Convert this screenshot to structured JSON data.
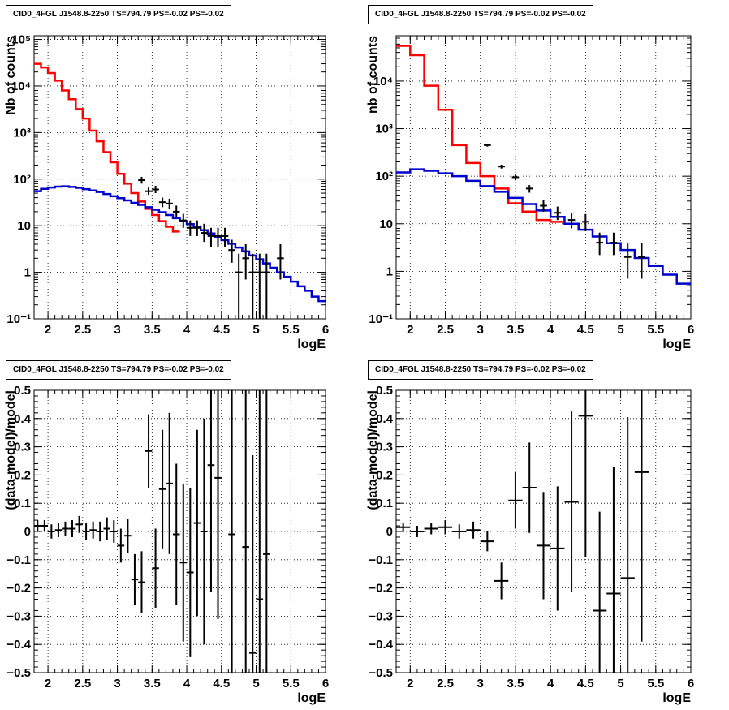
{
  "chart_data": [
    {
      "type": "line",
      "title": "CID0_4FGL J1548.8-2250 TS=794.79 PS=-0.02 PS=-0.02",
      "xlabel": "logE",
      "ylabel": "Nb of counts",
      "log_y": true,
      "xlim": [
        1.8,
        6.0
      ],
      "ylim": [
        0.1,
        120000
      ],
      "xticks": [
        "2",
        "2.5",
        "3",
        "3.5",
        "4",
        "4.5",
        "5",
        "5.5",
        "6"
      ],
      "xtick_values": [
        2,
        2.5,
        3,
        3.5,
        4,
        4.5,
        5,
        5.5,
        6
      ],
      "yticks": [
        "10⁻¹",
        "1",
        "10",
        "10²",
        "10³",
        "10⁴",
        "10⁵"
      ],
      "ytick_values": [
        0.1,
        1,
        10,
        100,
        1000,
        10000,
        100000
      ],
      "grid": true,
      "bin_edges": [
        1.8,
        1.9,
        2.0,
        2.1,
        2.2,
        2.3,
        2.4,
        2.5,
        2.6,
        2.7,
        2.8,
        2.9,
        3.0,
        3.1,
        3.2,
        3.3,
        3.4,
        3.5,
        3.6,
        3.7,
        3.8,
        3.9,
        4.0,
        4.1,
        4.2,
        4.3,
        4.4,
        4.5,
        4.6,
        4.7,
        4.8,
        4.9,
        5.0,
        5.1,
        5.2,
        5.3,
        5.4,
        5.5,
        5.6,
        5.7,
        5.8,
        5.9,
        6.0
      ],
      "series": [
        {
          "color": "#ff0000",
          "values": [
            30000,
            25000,
            19000,
            13000,
            8000,
            5200,
            3200,
            2000,
            1100,
            650,
            380,
            230,
            130,
            80,
            50,
            33,
            23,
            17,
            12.5,
            9.5,
            7.5
          ]
        },
        {
          "color": "#0000cc",
          "values": [
            55,
            62,
            66,
            69,
            70,
            68,
            65,
            61,
            57,
            53,
            48,
            43,
            39,
            35,
            31,
            28,
            25,
            22,
            19.5,
            17,
            14.5,
            12.5,
            10.8,
            9.3,
            8.0,
            6.8,
            5.8,
            4.9,
            4.1,
            3.4,
            2.8,
            2.3,
            1.9,
            1.55,
            1.25,
            1.0,
            0.8,
            0.63,
            0.5,
            0.4,
            0.3,
            0.24
          ]
        }
      ],
      "data_points": [
        {
          "x": 3.35,
          "y": 95,
          "lo": 80,
          "hi": 112
        },
        {
          "x": 3.45,
          "y": 55,
          "lo": 46,
          "hi": 66
        },
        {
          "x": 3.55,
          "y": 60,
          "lo": 50,
          "hi": 72
        },
        {
          "x": 3.65,
          "y": 32,
          "lo": 25,
          "hi": 40
        },
        {
          "x": 3.75,
          "y": 30,
          "lo": 23,
          "hi": 38
        },
        {
          "x": 3.85,
          "y": 20,
          "lo": 15,
          "hi": 27
        },
        {
          "x": 3.95,
          "y": 13,
          "lo": 9,
          "hi": 18
        },
        {
          "x": 4.05,
          "y": 9,
          "lo": 6,
          "hi": 13
        },
        {
          "x": 4.15,
          "y": 9,
          "lo": 6,
          "hi": 13
        },
        {
          "x": 4.25,
          "y": 7,
          "lo": 4.5,
          "hi": 11
        },
        {
          "x": 4.35,
          "y": 6,
          "lo": 3.5,
          "hi": 9
        },
        {
          "x": 4.45,
          "y": 6,
          "lo": 3.5,
          "hi": 9
        },
        {
          "x": 4.55,
          "y": 6,
          "lo": 3.5,
          "hi": 9
        },
        {
          "x": 4.65,
          "y": 3,
          "lo": 1.6,
          "hi": 5
        },
        {
          "x": 4.75,
          "y": 1,
          "lo": 0.1,
          "hi": 2.5
        },
        {
          "x": 4.85,
          "y": 2,
          "lo": 0.7,
          "hi": 4
        },
        {
          "x": 4.95,
          "y": 1,
          "lo": 0.1,
          "hi": 2.5
        },
        {
          "x": 5.05,
          "y": 1,
          "lo": 0.1,
          "hi": 2.5
        },
        {
          "x": 5.15,
          "y": 1,
          "lo": 0.1,
          "hi": 2.5
        },
        {
          "x": 5.35,
          "y": 2,
          "lo": 0.7,
          "hi": 4
        }
      ]
    },
    {
      "type": "line",
      "title": "CID0_4FGL J1548.8-2250 TS=794.79 PS=-0.02 PS=-0.02",
      "xlabel": "logE",
      "ylabel": "nb of counts",
      "log_y": true,
      "xlim": [
        1.8,
        6.0
      ],
      "ylim": [
        0.1,
        90000
      ],
      "xticks": [
        "2",
        "2.5",
        "3",
        "3.5",
        "4",
        "4.5",
        "5",
        "5.5",
        "6"
      ],
      "xtick_values": [
        2,
        2.5,
        3,
        3.5,
        4,
        4.5,
        5,
        5.5,
        6
      ],
      "yticks": [
        "10⁻¹",
        "1",
        "10",
        "10²",
        "10³",
        "10⁴"
      ],
      "ytick_values": [
        0.1,
        1,
        10,
        100,
        1000,
        10000
      ],
      "grid": true,
      "bin_edges": [
        1.8,
        2.0,
        2.2,
        2.4,
        2.6,
        2.8,
        3.0,
        3.2,
        3.4,
        3.6,
        3.8,
        4.0,
        4.2,
        4.4,
        4.6,
        4.8,
        5.0,
        5.2,
        5.4,
        5.6,
        5.8,
        6.0
      ],
      "series": [
        {
          "color": "#ff0000",
          "values": [
            55000,
            35000,
            8000,
            2500,
            450,
            190,
            100,
            55,
            27,
            18,
            12,
            11
          ]
        },
        {
          "color": "#0000cc",
          "values": [
            120,
            140,
            130,
            115,
            100,
            80,
            62,
            47,
            35,
            26,
            19,
            14,
            10,
            7.5,
            5.4,
            3.9,
            2.8,
            1.9,
            1.3,
            0.85,
            0.55
          ]
        }
      ],
      "data_points": [
        {
          "x": 3.1,
          "y": 450,
          "lo": 420,
          "hi": 480
        },
        {
          "x": 3.3,
          "y": 160,
          "lo": 145,
          "hi": 175
        },
        {
          "x": 3.5,
          "y": 95,
          "lo": 82,
          "hi": 108
        },
        {
          "x": 3.7,
          "y": 55,
          "lo": 45,
          "hi": 65
        },
        {
          "x": 3.9,
          "y": 24,
          "lo": 18,
          "hi": 31
        },
        {
          "x": 4.1,
          "y": 17,
          "lo": 12,
          "hi": 23
        },
        {
          "x": 4.3,
          "y": 12,
          "lo": 8,
          "hi": 17
        },
        {
          "x": 4.5,
          "y": 11,
          "lo": 7,
          "hi": 16
        },
        {
          "x": 4.7,
          "y": 4,
          "lo": 2.2,
          "hi": 6.5
        },
        {
          "x": 4.9,
          "y": 4,
          "lo": 2.2,
          "hi": 6.5
        },
        {
          "x": 5.1,
          "y": 2,
          "lo": 0.7,
          "hi": 4
        },
        {
          "x": 5.3,
          "y": 2,
          "lo": 0.7,
          "hi": 4
        }
      ]
    },
    {
      "type": "scatter",
      "title": "CID0_4FGL J1548.8-2250 TS=794.79 PS=-0.02 PS=-0.02",
      "xlabel": "logE",
      "ylabel": "(data-model)/model",
      "xlim": [
        1.8,
        6.0
      ],
      "ylim": [
        -0.5,
        0.5
      ],
      "xticks": [
        "2",
        "2.5",
        "3",
        "3.5",
        "4",
        "4.5",
        "5",
        "5.5",
        "6"
      ],
      "xtick_values": [
        2,
        2.5,
        3,
        3.5,
        4,
        4.5,
        5,
        5.5,
        6
      ],
      "yticks": [
        "−0.5",
        "−0.4",
        "−0.3",
        "−0.2",
        "−0.1",
        "0",
        "0.1",
        "0.2",
        "0.3",
        "0.4",
        "0.5"
      ],
      "ytick_values": [
        -0.5,
        -0.4,
        -0.3,
        -0.2,
        -0.1,
        0,
        0.1,
        0.2,
        0.3,
        0.4,
        0.5
      ],
      "grid": true,
      "half_width": 0.05,
      "data_points": [
        {
          "x": 1.85,
          "y": 0.02,
          "e": 0.02
        },
        {
          "x": 1.95,
          "y": 0.02,
          "e": 0.02
        },
        {
          "x": 2.05,
          "y": 0.0,
          "e": 0.025
        },
        {
          "x": 2.15,
          "y": 0.005,
          "e": 0.025
        },
        {
          "x": 2.25,
          "y": 0.01,
          "e": 0.025
        },
        {
          "x": 2.35,
          "y": 0.01,
          "e": 0.03
        },
        {
          "x": 2.45,
          "y": 0.025,
          "e": 0.03
        },
        {
          "x": 2.55,
          "y": 0.0,
          "e": 0.03
        },
        {
          "x": 2.65,
          "y": 0.005,
          "e": 0.03
        },
        {
          "x": 2.75,
          "y": 0.0,
          "e": 0.035
        },
        {
          "x": 2.85,
          "y": 0.01,
          "e": 0.04
        },
        {
          "x": 2.95,
          "y": 0.0,
          "e": 0.04
        },
        {
          "x": 3.05,
          "y": -0.05,
          "e": 0.06
        },
        {
          "x": 3.15,
          "y": -0.015,
          "e": 0.06
        },
        {
          "x": 3.25,
          "y": -0.17,
          "e": 0.09
        },
        {
          "x": 3.35,
          "y": -0.18,
          "e": 0.11
        },
        {
          "x": 3.45,
          "y": 0.285,
          "e": 0.13
        },
        {
          "x": 3.55,
          "y": -0.13,
          "e": 0.14
        },
        {
          "x": 3.65,
          "y": 0.15,
          "e": 0.21
        },
        {
          "x": 3.75,
          "y": 0.17,
          "e": 0.25
        },
        {
          "x": 3.85,
          "y": -0.01,
          "e": 0.25
        },
        {
          "x": 3.95,
          "y": -0.11,
          "e": 0.28
        },
        {
          "x": 4.05,
          "y": -0.145,
          "e": 0.3
        },
        {
          "x": 4.15,
          "y": 0.03,
          "e": 0.33
        },
        {
          "x": 4.25,
          "y": 0.0,
          "e": 0.4
        },
        {
          "x": 4.35,
          "y": 0.235,
          "e": 0.45
        },
        {
          "x": 4.45,
          "y": 0.19,
          "e": 0.5
        },
        {
          "x": 4.65,
          "y": -0.01,
          "e": 0.6
        },
        {
          "x": 4.85,
          "y": -0.055,
          "e": 0.65
        },
        {
          "x": 4.95,
          "y": -0.43,
          "e": 0.7
        },
        {
          "x": 5.05,
          "y": -0.24,
          "e": 0.75
        },
        {
          "x": 5.15,
          "y": -0.08,
          "e": 0.8
        }
      ]
    },
    {
      "type": "scatter",
      "title": "CID0_4FGL J1548.8-2250 TS=794.79 PS=-0.02 PS=-0.02",
      "xlabel": "logE",
      "ylabel": "(data-model)/model",
      "xlim": [
        1.8,
        6.0
      ],
      "ylim": [
        -0.5,
        0.5
      ],
      "xticks": [
        "2",
        "2.5",
        "3",
        "3.5",
        "4",
        "4.5",
        "5",
        "5.5",
        "6"
      ],
      "xtick_values": [
        2,
        2.5,
        3,
        3.5,
        4,
        4.5,
        5,
        5.5,
        6
      ],
      "yticks": [
        "−0.5",
        "−0.4",
        "−0.3",
        "−0.2",
        "−0.1",
        "0",
        "0.1",
        "0.2",
        "0.3",
        "0.4",
        "0.5"
      ],
      "ytick_values": [
        -0.5,
        -0.4,
        -0.3,
        -0.2,
        -0.1,
        0,
        0.1,
        0.2,
        0.3,
        0.4,
        0.5
      ],
      "grid": true,
      "half_width": 0.1,
      "data_points": [
        {
          "x": 1.9,
          "y": 0.015,
          "e": 0.015
        },
        {
          "x": 2.1,
          "y": 0.0,
          "e": 0.02
        },
        {
          "x": 2.3,
          "y": 0.01,
          "e": 0.02
        },
        {
          "x": 2.5,
          "y": 0.015,
          "e": 0.025
        },
        {
          "x": 2.7,
          "y": 0.0,
          "e": 0.025
        },
        {
          "x": 2.9,
          "y": 0.005,
          "e": 0.03
        },
        {
          "x": 3.1,
          "y": -0.035,
          "e": 0.035
        },
        {
          "x": 3.3,
          "y": -0.175,
          "e": 0.065
        },
        {
          "x": 3.5,
          "y": 0.11,
          "e": 0.1
        },
        {
          "x": 3.7,
          "y": 0.155,
          "e": 0.16
        },
        {
          "x": 3.9,
          "y": -0.05,
          "e": 0.19
        },
        {
          "x": 4.1,
          "y": -0.06,
          "e": 0.22
        },
        {
          "x": 4.3,
          "y": 0.105,
          "e": 0.32
        },
        {
          "x": 4.5,
          "y": 0.41,
          "e": 0.5
        },
        {
          "x": 4.7,
          "y": -0.28,
          "e": 0.35
        },
        {
          "x": 4.9,
          "y": -0.22,
          "e": 0.45
        },
        {
          "x": 5.1,
          "y": -0.165,
          "e": 0.57
        },
        {
          "x": 5.3,
          "y": 0.21,
          "e": 0.6
        }
      ]
    }
  ]
}
